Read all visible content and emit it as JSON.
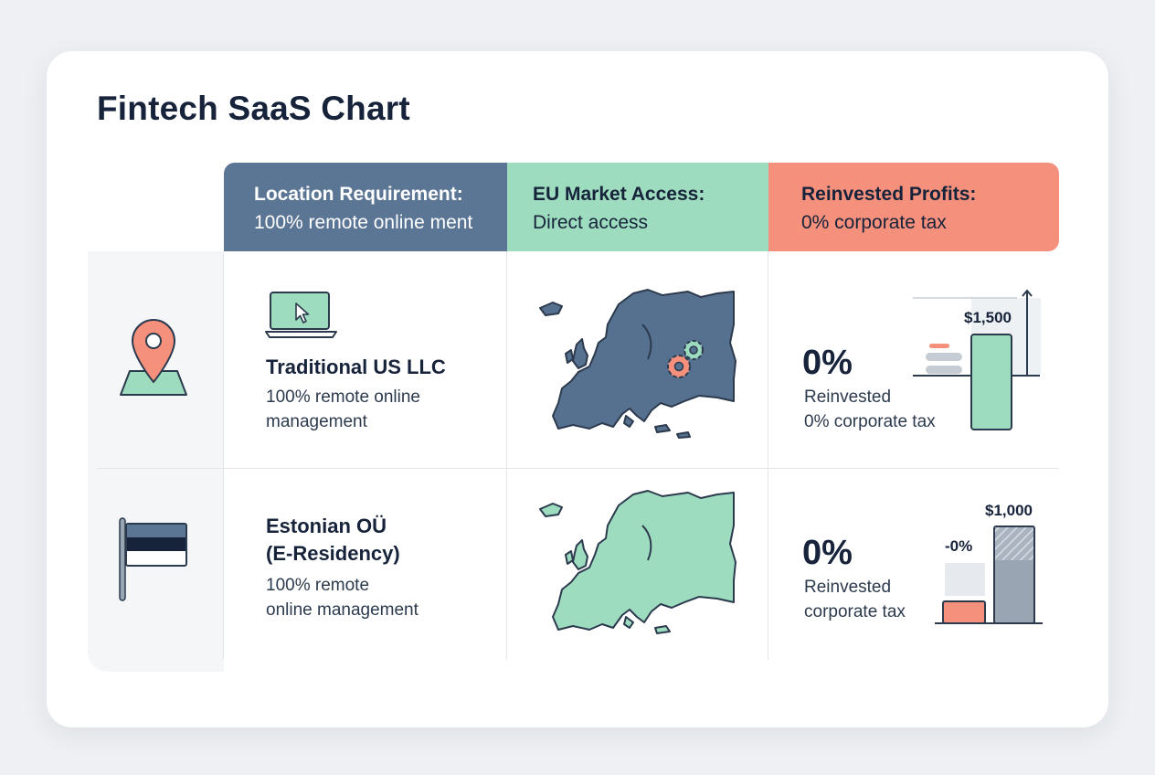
{
  "title": "Fintech SaaS Chart",
  "columns": [
    {
      "title": "Location Requirement:",
      "subtitle": "100% remote online ment",
      "color": "#5b7595"
    },
    {
      "title": "EU Market Access:",
      "subtitle": "Direct access",
      "color": "#9edcbf"
    },
    {
      "title": "Reinvested Profits:",
      "subtitle": "0% corporate tax",
      "color": "#f4907c"
    }
  ],
  "rows": [
    {
      "name": "Traditional US LLC",
      "desc_line1": "100% remote online",
      "desc_line2": "management",
      "side_icon": "map-pin-icon",
      "row_icon": "laptop-cursor-icon",
      "map_color": "#56708f",
      "map_overlay": "gears-icon",
      "pct": "0%",
      "pct_line1": "Reinvested",
      "pct_line2": "0% corporate tax",
      "bar_value": "$1,500"
    },
    {
      "name_line1": "Estonian OÜ",
      "name_line2": "(E-Residency)",
      "desc_line1": "100% remote",
      "desc_line2": "online management",
      "side_icon": "estonian-flag-icon",
      "map_color": "#9edcbf",
      "pct": "0%",
      "pct_line1": "Reinvested",
      "pct_line2": "corporate tax",
      "bar_small_label": "-0%",
      "bar_value": "$1,000"
    }
  ]
}
